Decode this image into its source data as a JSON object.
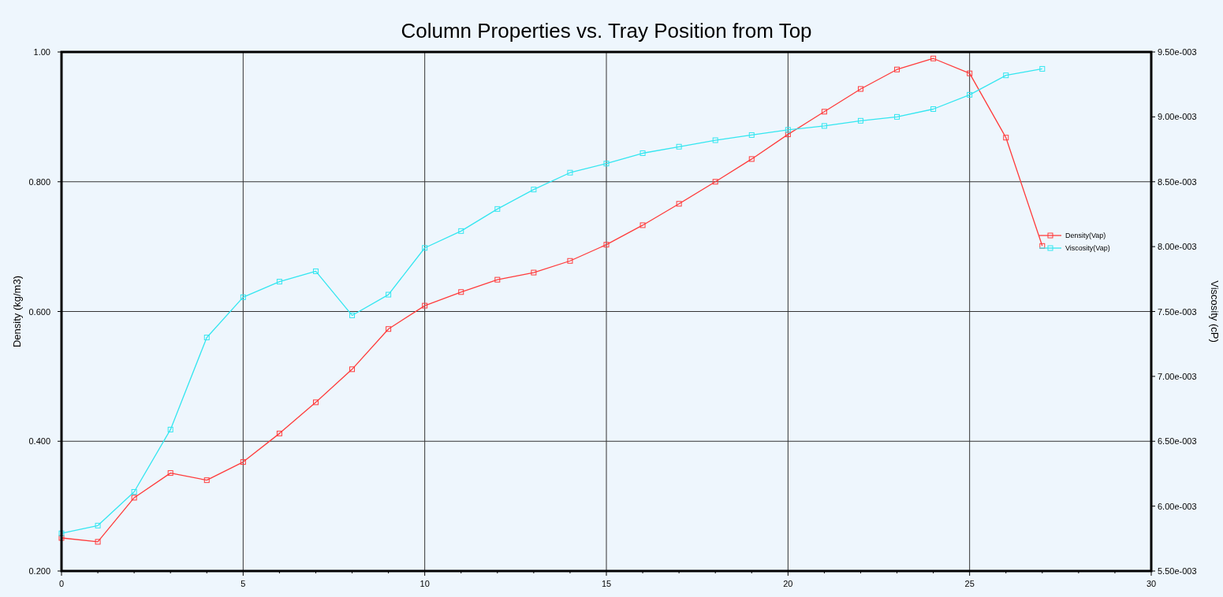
{
  "chart_data": {
    "type": "line",
    "title": "Column Properties vs. Tray Position from Top",
    "ylabel": "Density (kg/m3)",
    "y2label": "Viscosity (cP)",
    "x": [
      0,
      1,
      2,
      3,
      4,
      5,
      6,
      7,
      8,
      9,
      10,
      11,
      12,
      13,
      14,
      15,
      16,
      17,
      18,
      19,
      20,
      21,
      22,
      23,
      24,
      25,
      26,
      27
    ],
    "series": [
      {
        "name": "Density(Vap)",
        "color": "#ff3b3b",
        "values": [
          0.251,
          0.245,
          0.313,
          0.351,
          0.34,
          0.368,
          0.412,
          0.46,
          0.511,
          0.573,
          0.609,
          0.63,
          0.649,
          0.66,
          0.678,
          0.703,
          0.733,
          0.766,
          0.8,
          0.835,
          0.873,
          0.908,
          0.943,
          0.973,
          0.99,
          0.967,
          0.868,
          0.701
        ]
      },
      {
        "name": "Viscosity(Vap)",
        "color": "#33e6f0",
        "axis": "y2",
        "values": [
          0.00579,
          0.00585,
          0.00611,
          0.00659,
          0.0073,
          0.00761,
          0.00773,
          0.00781,
          0.00747,
          0.00763,
          0.00799,
          0.00812,
          0.00829,
          0.00844,
          0.00857,
          0.00864,
          0.00872,
          0.00877,
          0.00882,
          0.00886,
          0.0089,
          0.00893,
          0.00897,
          0.009,
          0.00906,
          0.00917,
          0.00932,
          0.00937
        ]
      }
    ],
    "xlim": [
      0,
      30
    ],
    "xticks": [
      0,
      {
        "value": 1,
        "label": null
      },
      {
        "value": 2,
        "label": null
      },
      {
        "value": 3,
        "label": null
      },
      {
        "value": 4,
        "label": null
      },
      5,
      {
        "value": 6,
        "label": null
      },
      {
        "value": 7,
        "label": null
      },
      {
        "value": 8,
        "label": null
      },
      {
        "value": 9,
        "label": null
      },
      10,
      {
        "value": 11,
        "label": null
      },
      {
        "value": 12,
        "label": null
      },
      {
        "value": 13,
        "label": null
      },
      {
        "value": 14,
        "label": null
      },
      15,
      {
        "value": 16,
        "label": null
      },
      {
        "value": 17,
        "label": null
      },
      {
        "value": 18,
        "label": null
      },
      {
        "value": 19,
        "label": null
      },
      20,
      {
        "value": 21,
        "label": null
      },
      {
        "value": 22,
        "label": null
      },
      {
        "value": 23,
        "label": null
      },
      {
        "value": 24,
        "label": null
      },
      25,
      {
        "value": 26,
        "label": null
      },
      {
        "value": 27,
        "label": null
      },
      {
        "value": 28,
        "label": null
      },
      {
        "value": 29,
        "label": null
      },
      30
    ],
    "ylim": [
      0.2,
      1.0
    ],
    "yticks": [
      {
        "value": 0.2,
        "label": "0.200"
      },
      {
        "value": 0.4,
        "label": "0.400"
      },
      {
        "value": 0.6,
        "label": "0.600"
      },
      {
        "value": 0.8,
        "label": "0.800"
      },
      {
        "value": 1.0,
        "label": "1.00"
      }
    ],
    "y2lim": [
      0.0055,
      0.0095
    ],
    "y2ticks": [
      {
        "value": 0.0055,
        "label": "5.50e-003"
      },
      {
        "value": 0.006,
        "label": "6.00e-003"
      },
      {
        "value": 0.0065,
        "label": "6.50e-003"
      },
      {
        "value": 0.007,
        "label": "7.00e-003"
      },
      {
        "value": 0.0075,
        "label": "7.50e-003"
      },
      {
        "value": 0.008,
        "label": "8.00e-003"
      },
      {
        "value": 0.0085,
        "label": "8.50e-003"
      },
      {
        "value": 0.009,
        "label": "9.00e-003"
      },
      {
        "value": 0.0095,
        "label": "9.50e-003"
      }
    ],
    "grid": true,
    "legend": "right",
    "marker": "square",
    "line_style": "solid"
  }
}
